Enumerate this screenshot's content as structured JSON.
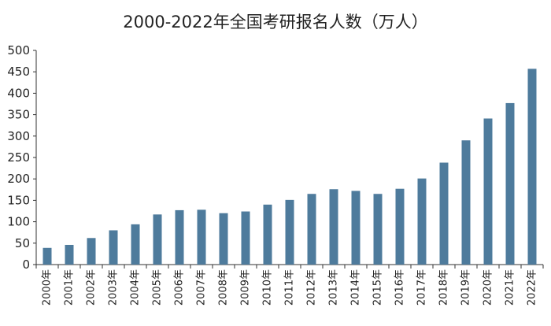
{
  "chart_data": {
    "type": "bar",
    "title": "2000-2022年全国考研报名人数（万人）",
    "xlabel": "",
    "ylabel": "",
    "ylim": [
      0,
      500
    ],
    "yticks": [
      0,
      50,
      100,
      150,
      200,
      250,
      300,
      350,
      400,
      450,
      500
    ],
    "grid": false,
    "categories": [
      "2000年",
      "2001年",
      "2002年",
      "2003年",
      "2004年",
      "2005年",
      "2006年",
      "2007年",
      "2008年",
      "2009年",
      "2010年",
      "2011年",
      "2012年",
      "2013年",
      "2014年",
      "2015年",
      "2016年",
      "2017年",
      "2018年",
      "2019年",
      "2020年",
      "2021年",
      "2022年"
    ],
    "values": [
      39,
      46,
      62,
      80,
      94,
      117,
      127,
      128,
      120,
      124,
      140,
      151,
      165,
      176,
      172,
      165,
      177,
      201,
      238,
      290,
      341,
      377,
      457
    ],
    "bar_color": "#4e7b9c"
  }
}
